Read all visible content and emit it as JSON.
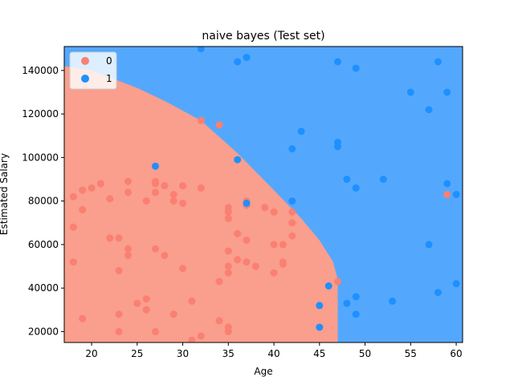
{
  "chart_data": {
    "type": "scatter",
    "title": "naive bayes (Test set)",
    "xlabel": "Age",
    "ylabel": "Estimated Salary",
    "xlim": [
      17,
      60.7
    ],
    "ylim": [
      15000,
      151000
    ],
    "xticks": [
      20,
      25,
      30,
      35,
      40,
      45,
      50,
      55,
      60
    ],
    "yticks": [
      20000,
      40000,
      60000,
      80000,
      100000,
      120000,
      140000
    ],
    "grid": false,
    "legend": "top-left",
    "background": {
      "class0_region_color": "#fa9e8d",
      "class1_region_color": "#53a8fd",
      "boundary": [
        [
          17,
          142000
        ],
        [
          20,
          140000
        ],
        [
          25,
          132000
        ],
        [
          28,
          126000
        ],
        [
          32,
          117000
        ],
        [
          36,
          102000
        ],
        [
          40,
          85000
        ],
        [
          43,
          72000
        ],
        [
          45,
          62000
        ],
        [
          46.5,
          52000
        ],
        [
          47,
          44000
        ],
        [
          47,
          15000
        ]
      ]
    },
    "series": [
      {
        "name": "0",
        "color": "#fa8072",
        "points": [
          [
            18,
            82000
          ],
          [
            18,
            68000
          ],
          [
            18,
            52000
          ],
          [
            19,
            85000
          ],
          [
            19,
            76000
          ],
          [
            19,
            26000
          ],
          [
            20,
            86000
          ],
          [
            21,
            88000
          ],
          [
            22,
            81000
          ],
          [
            22,
            63000
          ],
          [
            23,
            63000
          ],
          [
            23,
            48000
          ],
          [
            23,
            28000
          ],
          [
            23,
            20000
          ],
          [
            24,
            89000
          ],
          [
            24,
            84000
          ],
          [
            24,
            58000
          ],
          [
            24,
            55000
          ],
          [
            25,
            33000
          ],
          [
            26,
            80000
          ],
          [
            26,
            35000
          ],
          [
            26,
            30000
          ],
          [
            27,
            89000
          ],
          [
            27,
            88000
          ],
          [
            27,
            84000
          ],
          [
            27,
            58000
          ],
          [
            27,
            20000
          ],
          [
            28,
            87000
          ],
          [
            28,
            55000
          ],
          [
            29,
            83000
          ],
          [
            29,
            80000
          ],
          [
            29,
            28000
          ],
          [
            30,
            87000
          ],
          [
            30,
            79000
          ],
          [
            30,
            49000
          ],
          [
            31,
            34000
          ],
          [
            31,
            16000
          ],
          [
            32,
            117000
          ],
          [
            32,
            86000
          ],
          [
            32,
            18000
          ],
          [
            34,
            115000
          ],
          [
            34,
            43000
          ],
          [
            34,
            25000
          ],
          [
            35,
            77000
          ],
          [
            35,
            75000
          ],
          [
            35,
            72000
          ],
          [
            35,
            57000
          ],
          [
            35,
            50000
          ],
          [
            35,
            47000
          ],
          [
            35,
            22000
          ],
          [
            35,
            20000
          ],
          [
            36,
            65000
          ],
          [
            36,
            53000
          ],
          [
            37,
            80000
          ],
          [
            37,
            78000
          ],
          [
            37,
            62000
          ],
          [
            37,
            52000
          ],
          [
            38,
            50000
          ],
          [
            39,
            77000
          ],
          [
            40,
            75000
          ],
          [
            40,
            60000
          ],
          [
            40,
            47000
          ],
          [
            41,
            60000
          ],
          [
            41,
            52000
          ],
          [
            41,
            51000
          ],
          [
            42,
            80000
          ],
          [
            42,
            75000
          ],
          [
            42,
            70000
          ],
          [
            42,
            64000
          ],
          [
            47,
            43000
          ],
          [
            59,
            83000
          ]
        ]
      },
      {
        "name": "1",
        "color": "#1e90ff",
        "points": [
          [
            27,
            96000
          ],
          [
            32,
            150000
          ],
          [
            36,
            144000
          ],
          [
            36,
            99000
          ],
          [
            37,
            146000
          ],
          [
            37,
            79000
          ],
          [
            42,
            104000
          ],
          [
            42,
            80000
          ],
          [
            43,
            112000
          ],
          [
            45,
            32000
          ],
          [
            45,
            22000
          ],
          [
            46,
            41000
          ],
          [
            47,
            144000
          ],
          [
            47,
            107000
          ],
          [
            47,
            105000
          ],
          [
            48,
            90000
          ],
          [
            48,
            33000
          ],
          [
            49,
            141000
          ],
          [
            49,
            86000
          ],
          [
            49,
            36000
          ],
          [
            49,
            28000
          ],
          [
            52,
            90000
          ],
          [
            53,
            34000
          ],
          [
            55,
            130000
          ],
          [
            57,
            122000
          ],
          [
            57,
            60000
          ],
          [
            58,
            144000
          ],
          [
            58,
            38000
          ],
          [
            59,
            130000
          ],
          [
            59,
            88000
          ],
          [
            60,
            83000
          ],
          [
            60,
            42000
          ]
        ]
      }
    ]
  }
}
